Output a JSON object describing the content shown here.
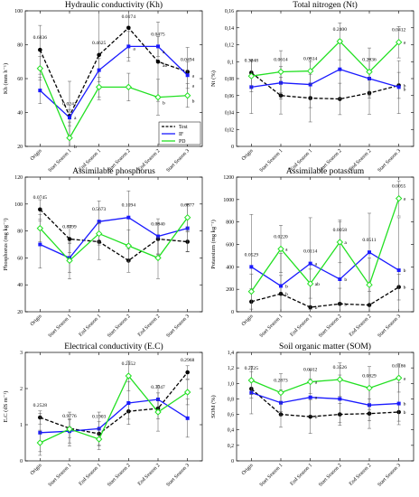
{
  "categories": [
    "Origin",
    "Start Season 1",
    "End Season 1",
    "Start Season 2",
    "End Season 2",
    "Start Season 3"
  ],
  "legend": [
    {
      "name": "Test",
      "color": "#000000",
      "dash": true,
      "marker": "circle"
    },
    {
      "name": "IF",
      "color": "#1a1aff",
      "dash": false,
      "marker": "square"
    },
    {
      "name": "PD",
      "color": "#22e022",
      "dash": false,
      "marker": "diamond"
    }
  ],
  "chart_data": [
    {
      "type": "line",
      "title": "Hydraulic conductivity (Kh)",
      "ylabel": "Kh (mm h⁻¹)",
      "ylim": [
        20,
        100
      ],
      "yticks": [
        "20",
        "40",
        "60",
        "80",
        "100"
      ],
      "series": [
        {
          "name": "Test",
          "values": [
            77,
            38,
            74,
            90,
            70,
            64
          ]
        },
        {
          "name": "IF",
          "values": [
            53,
            37,
            65,
            79,
            79,
            62
          ]
        },
        {
          "name": "PD",
          "values": [
            66,
            25,
            55,
            55,
            49,
            50
          ]
        }
      ],
      "p_values": [
        "0.6836",
        "0.0241",
        "0.4625",
        "0.0174",
        "0.0475",
        "0.0494"
      ],
      "letters": [
        {
          "idx": 1,
          "y": 37,
          "t": "a"
        },
        {
          "idx": 1,
          "y": 20,
          "t": "b"
        },
        {
          "idx": 3,
          "y": 78,
          "t": "a"
        },
        {
          "idx": 4,
          "y": 76,
          "t": "a"
        },
        {
          "idx": 4,
          "y": 68,
          "t": "ab"
        },
        {
          "idx": 4,
          "y": 46,
          "t": "b"
        },
        {
          "idx": 5,
          "y": 62,
          "t": "a"
        },
        {
          "idx": 5,
          "y": 56,
          "t": "a"
        },
        {
          "idx": 5,
          "y": 47,
          "t": "b"
        }
      ]
    },
    {
      "type": "line",
      "title": "Total nitrogen (Nt)",
      "ylabel": "Nt (%)",
      "ylim": [
        0,
        0.16
      ],
      "yticks": [
        "0",
        "0,02",
        "0,04",
        "0,06",
        "0,08",
        "0,1",
        "0,12",
        "0,14",
        "0,16"
      ],
      "series": [
        {
          "name": "Test",
          "values": [
            0.087,
            0.06,
            0.057,
            0.056,
            0.063,
            0.072
          ]
        },
        {
          "name": "IF",
          "values": [
            0.07,
            0.075,
            0.073,
            0.091,
            0.08,
            0.07
          ]
        },
        {
          "name": "PD",
          "values": [
            0.083,
            0.088,
            0.089,
            0.124,
            0.088,
            0.123
          ]
        }
      ],
      "p_values": [
        "0.3248",
        "0.0614",
        "0.0514",
        "0.2400",
        "0.2836",
        "0.0412"
      ],
      "letters": [
        {
          "idx": 5,
          "y": 0.123,
          "t": "a"
        },
        {
          "idx": 5,
          "y": 0.072,
          "t": "b"
        },
        {
          "idx": 5,
          "y": 0.068,
          "t": "b"
        }
      ]
    },
    {
      "type": "line",
      "title": "Assimilable phosphorus",
      "ylabel": "Phosphorus (mg kg⁻¹)",
      "ylim": [
        20,
        120
      ],
      "yticks": [
        "20",
        "40",
        "60",
        "80",
        "100",
        "120"
      ],
      "series": [
        {
          "name": "Test",
          "values": [
            96,
            74,
            72,
            58,
            74,
            72
          ]
        },
        {
          "name": "IF",
          "values": [
            70,
            60,
            87,
            90,
            76,
            82
          ]
        },
        {
          "name": "PD",
          "values": [
            82,
            58,
            78,
            69,
            60,
            90
          ]
        }
      ],
      "p_values": [
        "0.0745",
        "0.8499",
        "0.5673",
        "0.1094",
        "0.0840",
        "0.6877"
      ],
      "letters": []
    },
    {
      "type": "line",
      "title": "Assimilable potassium",
      "ylabel": "Potassium (mg kg⁻¹)",
      "ylim": [
        0,
        1200
      ],
      "yticks": [
        "0",
        "200",
        "400",
        "600",
        "800",
        "1000",
        "1200"
      ],
      "series": [
        {
          "name": "Test",
          "values": [
            90,
            160,
            40,
            70,
            60,
            220
          ]
        },
        {
          "name": "IF",
          "values": [
            400,
            230,
            430,
            290,
            530,
            370
          ]
        },
        {
          "name": "PD",
          "values": [
            180,
            560,
            250,
            620,
            240,
            1010
          ]
        }
      ],
      "p_values": [
        "0.0529",
        "0.0220",
        "0.0114",
        "0.0058",
        "0.0511",
        "0.0055"
      ],
      "letters": [
        {
          "idx": 1,
          "y": 560,
          "t": "a"
        },
        {
          "idx": 1,
          "y": 230,
          "t": "b"
        },
        {
          "idx": 1,
          "y": 160,
          "t": "b"
        },
        {
          "idx": 2,
          "y": 430,
          "t": "a"
        },
        {
          "idx": 2,
          "y": 250,
          "t": "ab"
        },
        {
          "idx": 2,
          "y": 40,
          "t": "b"
        },
        {
          "idx": 3,
          "y": 620,
          "t": "a"
        },
        {
          "idx": 3,
          "y": 290,
          "t": "b"
        },
        {
          "idx": 3,
          "y": 70,
          "t": "b"
        },
        {
          "idx": 5,
          "y": 1010,
          "t": "a"
        },
        {
          "idx": 5,
          "y": 370,
          "t": "b"
        },
        {
          "idx": 5,
          "y": 220,
          "t": "b"
        }
      ]
    },
    {
      "type": "line",
      "title": "Electrical conductivity (E.C)",
      "ylabel": "E.C (dS m⁻¹)",
      "ylim": [
        0,
        3
      ],
      "yticks": [
        "0",
        "1",
        "2",
        "3"
      ],
      "series": [
        {
          "name": "Test",
          "values": [
            1.2,
            0.9,
            0.75,
            1.37,
            1.45,
            2.45
          ]
        },
        {
          "name": "IF",
          "values": [
            0.78,
            0.82,
            0.89,
            1.6,
            1.7,
            1.18
          ]
        },
        {
          "name": "PD",
          "values": [
            0.5,
            0.88,
            0.6,
            2.35,
            1.35,
            1.9
          ]
        }
      ],
      "p_values": [
        "0.2528",
        "0.9776",
        "0.1903",
        "0.2352",
        "0.3047",
        "0.2968"
      ],
      "letters": []
    },
    {
      "type": "line",
      "title": "Soil organic matter (SOM)",
      "ylabel": "SOM (%)",
      "ylim": [
        0,
        1.4
      ],
      "yticks": [
        "0",
        "0,2",
        "0,4",
        "0,6",
        "0,8",
        "1,0",
        "1,2",
        "1,4"
      ],
      "series": [
        {
          "name": "Test",
          "values": [
            0.93,
            0.6,
            0.57,
            0.6,
            0.61,
            0.63
          ]
        },
        {
          "name": "IF",
          "values": [
            0.88,
            0.75,
            0.82,
            0.8,
            0.72,
            0.74
          ]
        },
        {
          "name": "PD",
          "values": [
            1.04,
            0.88,
            1.02,
            1.05,
            0.94,
            1.07
          ]
        }
      ],
      "p_values": [
        "0.2225",
        "0.2873",
        "0.0012",
        "0.3526",
        "0.0829",
        "0.0186"
      ],
      "letters": [
        {
          "idx": 2,
          "y": 1.02,
          "t": "a"
        },
        {
          "idx": 2,
          "y": 0.82,
          "t": "a"
        },
        {
          "idx": 2,
          "y": 0.57,
          "t": "b"
        },
        {
          "idx": 5,
          "y": 1.07,
          "t": "a"
        },
        {
          "idx": 5,
          "y": 0.74,
          "t": "b"
        },
        {
          "idx": 5,
          "y": 0.63,
          "t": "b"
        }
      ]
    }
  ]
}
